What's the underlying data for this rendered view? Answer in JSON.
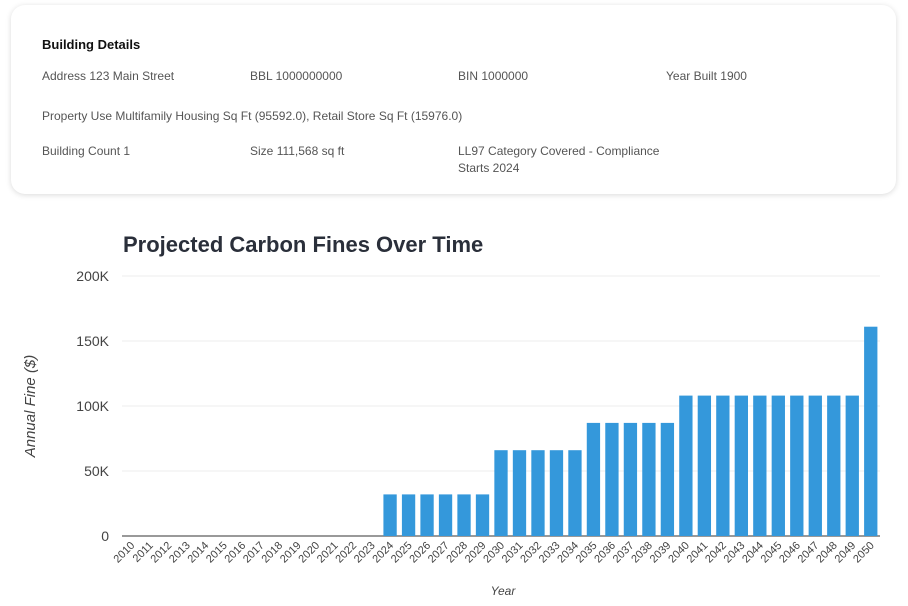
{
  "building": {
    "title": "Building Details",
    "address": {
      "label": "Address",
      "value": "123 Main Street"
    },
    "bbl": {
      "label": "BBL",
      "value": "1000000000"
    },
    "bin": {
      "label": "BIN",
      "value": "1000000"
    },
    "year_built": {
      "label": "Year Built",
      "value": "1900"
    },
    "property_use": {
      "label": "Property Use",
      "value": "Multifamily Housing Sq Ft (95592.0), Retail Store Sq Ft (15976.0)"
    },
    "building_count": {
      "label": "Building Count",
      "value": "1"
    },
    "size": {
      "label": "Size",
      "value": "111,568 sq ft"
    },
    "ll97_category": {
      "label": "LL97 Category",
      "value": "Covered - Compliance Starts 2024"
    }
  },
  "chart_data": {
    "type": "bar",
    "title": "Projected Carbon Fines Over Time",
    "xlabel": "Year",
    "ylabel": "Annual Fine ($)",
    "ylim": [
      0,
      200000
    ],
    "yticks": [
      0,
      50000,
      100000,
      150000,
      200000
    ],
    "ytick_labels": [
      "0",
      "50K",
      "100K",
      "150K",
      "200K"
    ],
    "grid": true,
    "bar_color": "#3498db",
    "categories": [
      "2010",
      "2011",
      "2012",
      "2013",
      "2014",
      "2015",
      "2016",
      "2017",
      "2018",
      "2019",
      "2020",
      "2021",
      "2022",
      "2023",
      "2024",
      "2025",
      "2026",
      "2027",
      "2028",
      "2029",
      "2030",
      "2031",
      "2032",
      "2033",
      "2034",
      "2035",
      "2036",
      "2037",
      "2038",
      "2039",
      "2040",
      "2041",
      "2042",
      "2043",
      "2044",
      "2045",
      "2046",
      "2047",
      "2048",
      "2049",
      "2050"
    ],
    "values": [
      0,
      0,
      0,
      0,
      0,
      0,
      0,
      0,
      0,
      0,
      0,
      0,
      0,
      0,
      32000,
      32000,
      32000,
      32000,
      32000,
      32000,
      66000,
      66000,
      66000,
      66000,
      66000,
      87000,
      87000,
      87000,
      87000,
      87000,
      108000,
      108000,
      108000,
      108000,
      108000,
      108000,
      108000,
      108000,
      108000,
      108000,
      161000
    ]
  }
}
